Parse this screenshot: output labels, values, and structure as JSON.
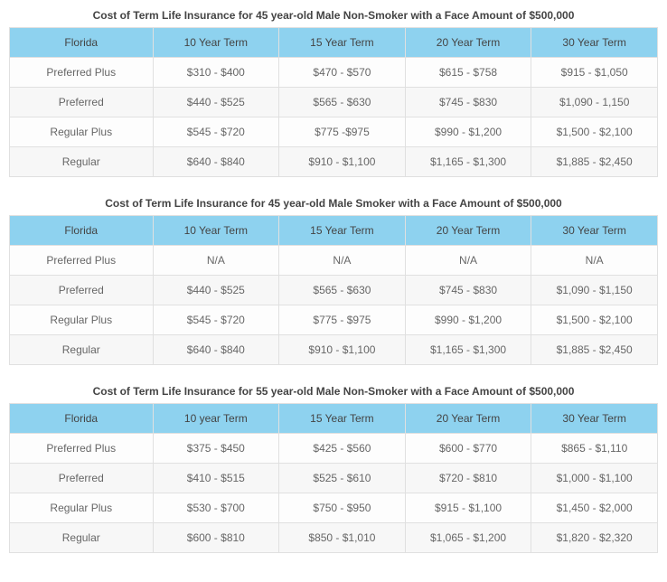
{
  "header_bg": "#8ed2ef",
  "cell_bg": "#f7f7f7",
  "border_color": "#e0e0e0",
  "text_color": "#555",
  "tables": [
    {
      "title": "Cost of Term Life Insurance for 45 year-old Male Non-Smoker with a Face Amount of $500,000",
      "columns": [
        "Florida",
        "10 Year Term",
        "15 Year Term",
        "20 Year Term",
        "30 Year Term"
      ],
      "rows": [
        [
          "Preferred Plus",
          "$310 - $400",
          "$470 - $570",
          "$615 - $758",
          "$915 - $1,050"
        ],
        [
          "Preferred",
          "$440 - $525",
          "$565 - $630",
          "$745 - $830",
          "$1,090 - 1,150"
        ],
        [
          "Regular Plus",
          "$545 - $720",
          "$775 -$975",
          "$990 - $1,200",
          "$1,500 - $2,100"
        ],
        [
          "Regular",
          "$640 - $840",
          "$910 - $1,100",
          "$1,165 - $1,300",
          "$1,885 - $2,450"
        ]
      ]
    },
    {
      "title": "Cost of Term Life Insurance for 45 year-old Male Smoker with a Face Amount of $500,000",
      "columns": [
        "Florida",
        "10 Year Term",
        "15 Year Term",
        "20 Year Term",
        "30 Year Term"
      ],
      "rows": [
        [
          "Preferred Plus",
          "N/A",
          "N/A",
          "N/A",
          "N/A"
        ],
        [
          "Preferred",
          "$440 - $525",
          "$565 - $630",
          "$745 - $830",
          "$1,090 - $1,150"
        ],
        [
          "Regular Plus",
          "$545 - $720",
          "$775 - $975",
          "$990 - $1,200",
          "$1,500 - $2,100"
        ],
        [
          "Regular",
          "$640 - $840",
          "$910 - $1,100",
          "$1,165 - $1,300",
          "$1,885 - $2,450"
        ]
      ]
    },
    {
      "title": "Cost of Term Life Insurance for 55 year-old Male Non-Smoker with a Face Amount of $500,000",
      "columns": [
        "Florida",
        "10 year Term",
        "15 Year Term",
        "20 Year Term",
        "30 Year Term"
      ],
      "rows": [
        [
          "Preferred Plus",
          "$375 - $450",
          "$425 - $560",
          "$600 - $770",
          "$865 - $1,110"
        ],
        [
          "Preferred",
          "$410 - $515",
          "$525 - $610",
          "$720 - $810",
          "$1,000 - $1,100"
        ],
        [
          "Regular Plus",
          "$530 - $700",
          "$750 - $950",
          "$915 - $1,100",
          "$1,450 - $2,000"
        ],
        [
          "Regular",
          "$600 - $810",
          "$850 - $1,010",
          "$1,065 - $1,200",
          "$1,820 - $2,320"
        ]
      ]
    }
  ]
}
